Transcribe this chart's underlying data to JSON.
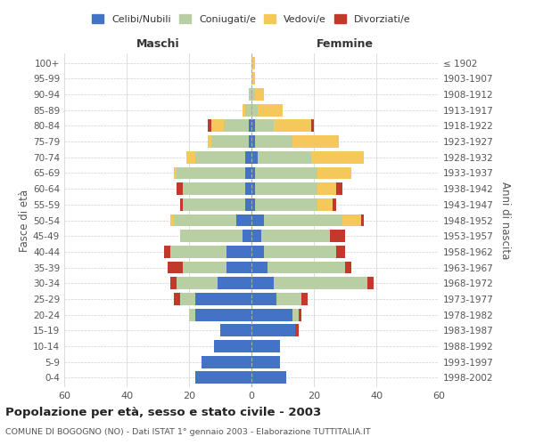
{
  "age_groups": [
    "0-4",
    "5-9",
    "10-14",
    "15-19",
    "20-24",
    "25-29",
    "30-34",
    "35-39",
    "40-44",
    "45-49",
    "50-54",
    "55-59",
    "60-64",
    "65-69",
    "70-74",
    "75-79",
    "80-84",
    "85-89",
    "90-94",
    "95-99",
    "100+"
  ],
  "birth_years": [
    "1998-2002",
    "1993-1997",
    "1988-1992",
    "1983-1987",
    "1978-1982",
    "1973-1977",
    "1968-1972",
    "1963-1967",
    "1958-1962",
    "1953-1957",
    "1948-1952",
    "1943-1947",
    "1938-1942",
    "1933-1937",
    "1928-1932",
    "1923-1927",
    "1918-1922",
    "1913-1917",
    "1908-1912",
    "1903-1907",
    "≤ 1902"
  ],
  "male_celibi": [
    18,
    16,
    12,
    10,
    18,
    18,
    11,
    8,
    8,
    3,
    5,
    2,
    2,
    2,
    2,
    1,
    1,
    0,
    0,
    0,
    0
  ],
  "male_coniugati": [
    0,
    0,
    0,
    0,
    2,
    5,
    13,
    14,
    18,
    20,
    20,
    20,
    20,
    22,
    16,
    12,
    8,
    2,
    1,
    0,
    0
  ],
  "male_vedovi": [
    0,
    0,
    0,
    0,
    0,
    0,
    0,
    0,
    0,
    0,
    1,
    0,
    0,
    1,
    3,
    1,
    4,
    1,
    0,
    0,
    0
  ],
  "male_divorziati": [
    0,
    0,
    0,
    0,
    0,
    2,
    2,
    5,
    2,
    0,
    0,
    1,
    2,
    0,
    0,
    0,
    1,
    0,
    0,
    0,
    0
  ],
  "female_celibi": [
    11,
    9,
    9,
    14,
    13,
    8,
    7,
    5,
    4,
    3,
    4,
    1,
    1,
    1,
    2,
    1,
    1,
    0,
    0,
    0,
    0
  ],
  "female_coniugati": [
    0,
    0,
    0,
    0,
    2,
    8,
    30,
    25,
    23,
    22,
    25,
    20,
    20,
    20,
    17,
    12,
    6,
    2,
    1,
    0,
    0
  ],
  "female_vedovi": [
    0,
    0,
    0,
    0,
    0,
    0,
    0,
    0,
    0,
    0,
    6,
    5,
    6,
    11,
    17,
    15,
    12,
    8,
    3,
    1,
    1
  ],
  "female_divorziati": [
    0,
    0,
    0,
    1,
    1,
    2,
    2,
    2,
    3,
    5,
    1,
    1,
    2,
    0,
    0,
    0,
    1,
    0,
    0,
    0,
    0
  ],
  "color_celibi": "#4472c4",
  "color_coniugati": "#b8cfa4",
  "color_vedovi": "#f5c85c",
  "color_divorziati": "#c0392b",
  "title": "Popolazione per età, sesso e stato civile - 2003",
  "subtitle": "COMUNE DI BOGOGNO (NO) - Dati ISTAT 1° gennaio 2003 - Elaborazione TUTTITALIA.IT",
  "xlabel_left": "Maschi",
  "xlabel_right": "Femmine",
  "ylabel_left": "Fasce di età",
  "ylabel_right": "Anni di nascita",
  "xlim": 60,
  "background_color": "#ffffff",
  "grid_color": "#d0d0d0"
}
